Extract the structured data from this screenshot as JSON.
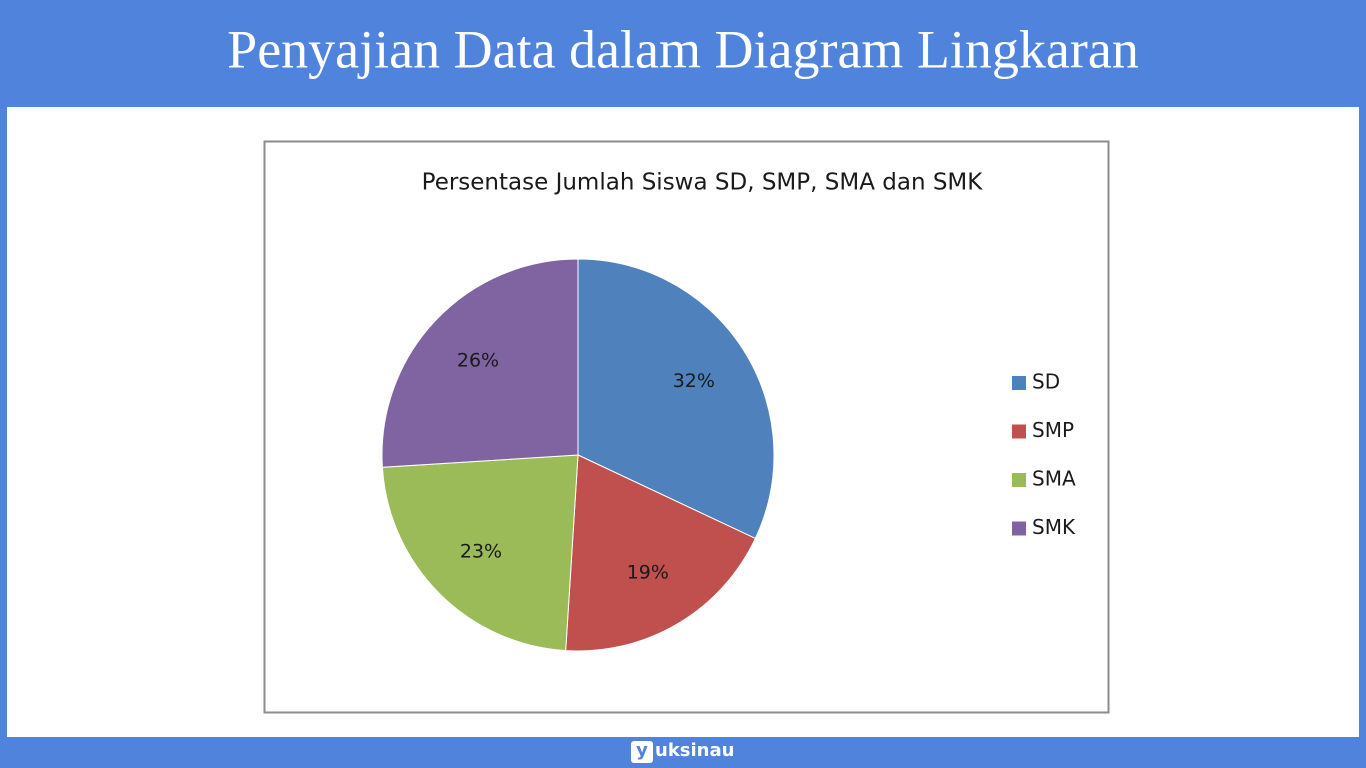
{
  "header": {
    "title": "Penyajian Data dalam Diagram Lingkaran"
  },
  "chart_data": {
    "type": "pie",
    "title": "Persentase Jumlah Siswa SD, SMP, SMA dan SMK",
    "categories": [
      "SD",
      "SMP",
      "SMA",
      "SMK"
    ],
    "values": [
      32,
      19,
      23,
      26
    ],
    "value_labels": [
      "32%",
      "19%",
      "23%",
      "26%"
    ],
    "colors": [
      "#4f81bd",
      "#c0504d",
      "#9bbb59",
      "#8064a2"
    ],
    "legend": "right"
  },
  "footer": {
    "logo_mark": "y",
    "logo_text": "uksinau"
  }
}
